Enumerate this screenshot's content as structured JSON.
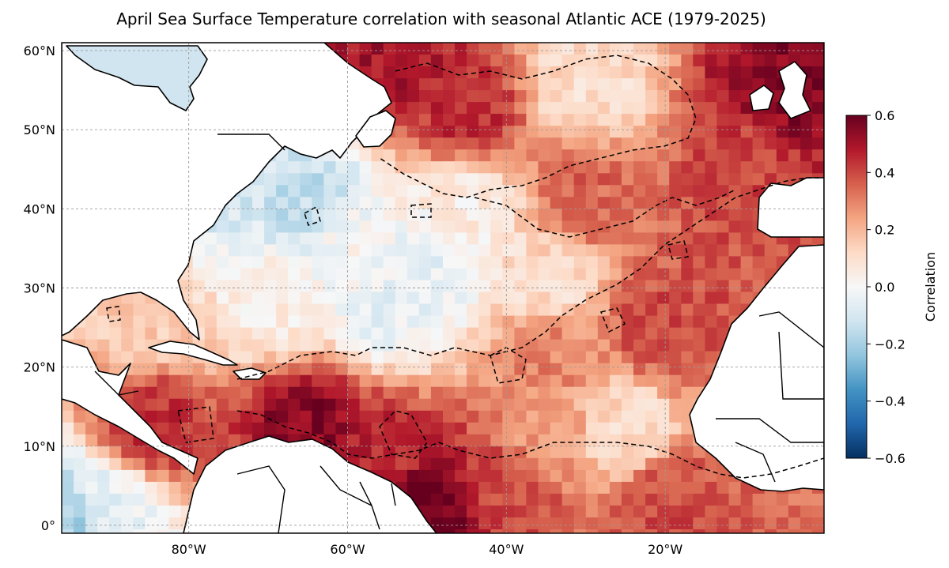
{
  "title": "April Sea Surface Temperature correlation with seasonal Atlantic ACE (1979-2025)",
  "map": {
    "lon_range": [
      -96,
      0
    ],
    "lat_range": [
      -1,
      61
    ],
    "gridlines": true,
    "lat_ticks": [
      {
        "value": 60,
        "label": "60°N"
      },
      {
        "value": 50,
        "label": "50°N"
      },
      {
        "value": 40,
        "label": "40°N"
      },
      {
        "value": 30,
        "label": "30°N"
      },
      {
        "value": 20,
        "label": "20°N"
      },
      {
        "value": 10,
        "label": "10°N"
      },
      {
        "value": 0,
        "label": "0°"
      }
    ],
    "lon_ticks": [
      {
        "value": -80,
        "label": "80°W"
      },
      {
        "value": -60,
        "label": "60°W"
      },
      {
        "value": -40,
        "label": "40°W"
      },
      {
        "value": -20,
        "label": "20°W"
      }
    ],
    "land_color": "#ffffff",
    "significance_contour": "dashed black"
  },
  "colorbar": {
    "label": "Correlation",
    "colormap": "RdBu_r",
    "range": [
      -0.6,
      0.6
    ],
    "ticks": [
      {
        "value": 0.6,
        "label": "0.6"
      },
      {
        "value": 0.4,
        "label": "0.4"
      },
      {
        "value": 0.2,
        "label": "0.2"
      },
      {
        "value": 0.0,
        "label": "0.0"
      },
      {
        "value": -0.2,
        "label": "−0.2"
      },
      {
        "value": -0.4,
        "label": "−0.4"
      },
      {
        "value": -0.6,
        "label": "−0.6"
      }
    ]
  },
  "correlation_anchors": [
    {
      "lon": -50,
      "lat": 3,
      "r": 0.6
    },
    {
      "lon": -65,
      "lat": 13,
      "r": 0.55
    },
    {
      "lon": -85,
      "lat": 12,
      "r": 0.45
    },
    {
      "lon": -55,
      "lat": 8,
      "r": 0.45
    },
    {
      "lon": -40,
      "lat": 5,
      "r": 0.4
    },
    {
      "lon": -20,
      "lat": 3,
      "r": 0.4
    },
    {
      "lon": -5,
      "lat": 55,
      "r": 0.55
    },
    {
      "lon": -55,
      "lat": 58,
      "r": 0.5
    },
    {
      "lon": -45,
      "lat": 52,
      "r": 0.45
    },
    {
      "lon": -10,
      "lat": 45,
      "r": 0.4
    },
    {
      "lon": -20,
      "lat": 25,
      "r": 0.4
    },
    {
      "lon": -35,
      "lat": 22,
      "r": 0.3
    },
    {
      "lon": -30,
      "lat": 42,
      "r": 0.35
    },
    {
      "lon": -35,
      "lat": 12,
      "r": 0.25
    },
    {
      "lon": -60,
      "lat": 35,
      "r": 0.0
    },
    {
      "lon": -50,
      "lat": 32,
      "r": -0.05
    },
    {
      "lon": -55,
      "lat": 28,
      "r": -0.05
    },
    {
      "lon": -65,
      "lat": 41,
      "r": -0.15
    },
    {
      "lon": -75,
      "lat": 42,
      "r": -0.1
    },
    {
      "lon": -95,
      "lat": 1,
      "r": -0.2
    },
    {
      "lon": -90,
      "lat": 3,
      "r": -0.05
    },
    {
      "lon": -85,
      "lat": 27,
      "r": 0.15
    },
    {
      "lon": -30,
      "lat": 55,
      "r": 0.1
    },
    {
      "lon": -35,
      "lat": 30,
      "r": 0.1
    },
    {
      "lon": -25,
      "lat": 12,
      "r": 0.1
    },
    {
      "lon": -45,
      "lat": 40,
      "r": 0.05
    },
    {
      "lon": -70,
      "lat": 28,
      "r": 0.05
    },
    {
      "lon": -80,
      "lat": 58,
      "r": -0.1
    }
  ]
}
